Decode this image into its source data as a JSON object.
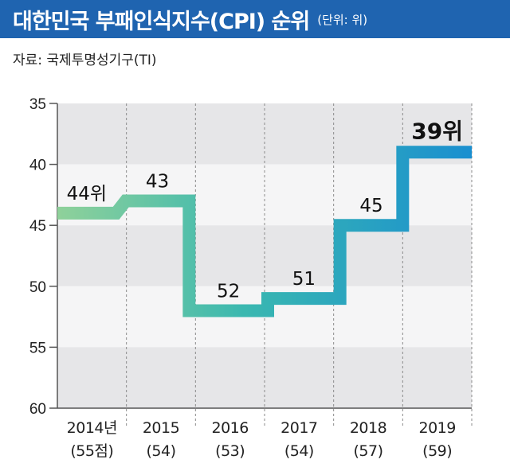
{
  "header": {
    "title": "대한민국 부패인식지수(CPI) 순위",
    "unit": "(단위: 위)"
  },
  "source": "자료: 국제투명성기구(TI)",
  "chart_data": {
    "type": "line",
    "step": true,
    "categories": [
      "2014년",
      "2015",
      "2016",
      "2017",
      "2018",
      "2019"
    ],
    "sublabels": [
      "(55점)",
      "(54)",
      "(53)",
      "(54)",
      "(57)",
      "(59)"
    ],
    "values": [
      44,
      43,
      52,
      51,
      45,
      39
    ],
    "data_labels": [
      "44위",
      "43",
      "52",
      "51",
      "45",
      "39위"
    ],
    "ylim": [
      35,
      60
    ],
    "inverted_y": true,
    "yticks": [
      35,
      40,
      45,
      50,
      55,
      60
    ],
    "grid": true,
    "colors": [
      "#8fd19a",
      "#3ab8b0",
      "#1a8fd0"
    ]
  }
}
